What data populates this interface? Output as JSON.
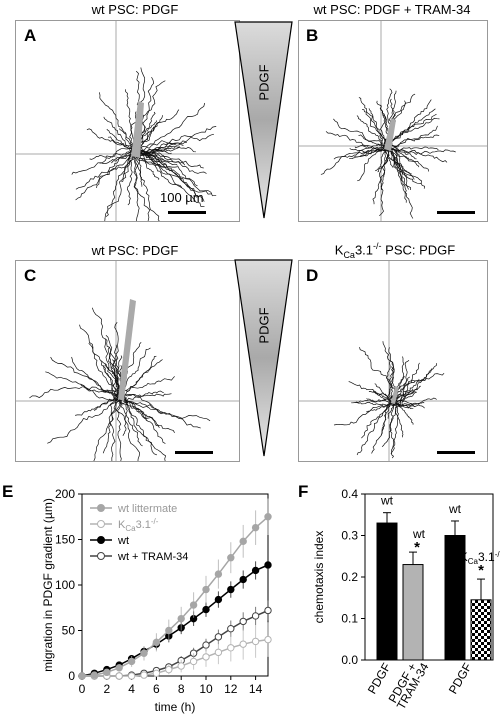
{
  "panels": {
    "A": {
      "letter": "A",
      "title": "wt PSC: PDGF",
      "scale_label": "100 µm"
    },
    "B": {
      "letter": "B",
      "title": "wt PSC: PDGF + TRAM-34"
    },
    "C": {
      "letter": "C",
      "title": "wt PSC: PDGF"
    },
    "D": {
      "letter": "D",
      "title_main": "K",
      "title_sub": "Ca",
      "title_rest": "3.1",
      "title_sup": "-/-",
      "title_tail": " PSC: PDGF"
    }
  },
  "gradients": {
    "top_label": "PDGF",
    "bottom_label": "PDGF"
  },
  "chart_data": [
    {
      "id": "E",
      "letter": "E",
      "type": "line",
      "xlabel": "time (h)",
      "ylabel": "migration in PDGF gradient (µm)",
      "xlim": [
        0,
        15
      ],
      "ylim": [
        0,
        200
      ],
      "xticks": [
        0,
        2,
        4,
        6,
        8,
        10,
        12,
        14
      ],
      "yticks": [
        0,
        50,
        100,
        150,
        200
      ],
      "legend_position": "top-left",
      "series": [
        {
          "name": "wt littermate",
          "color": "#a6a6a6",
          "marker": "filled",
          "x": [
            0,
            1,
            2,
            3,
            4,
            5,
            6,
            7,
            8,
            9,
            10,
            11,
            12,
            13,
            14,
            15
          ],
          "y": [
            0,
            1,
            4,
            9,
            16,
            25,
            37,
            50,
            63,
            78,
            95,
            112,
            130,
            148,
            163,
            175
          ],
          "err": [
            0,
            1,
            2,
            4,
            6,
            8,
            10,
            12,
            13,
            14,
            15,
            16,
            17,
            18,
            19,
            20
          ]
        },
        {
          "name_main": "K",
          "name_sub": "Ca",
          "name_rest": "3.1",
          "name_sup": "-/-",
          "color": "#b3b3b3",
          "marker": "open",
          "x": [
            0,
            1,
            2,
            3,
            4,
            5,
            6,
            7,
            8,
            9,
            10,
            11,
            12,
            13,
            14,
            15
          ],
          "y": [
            0,
            0,
            0,
            0,
            0,
            1,
            3,
            7,
            11,
            16,
            21,
            26,
            31,
            35,
            38,
            40
          ],
          "err": [
            0,
            0,
            0,
            0,
            1,
            2,
            3,
            5,
            7,
            9,
            11,
            13,
            15,
            17,
            18,
            19
          ]
        },
        {
          "name": "wt",
          "color": "#000000",
          "marker": "filled",
          "x": [
            0,
            1,
            2,
            3,
            4,
            5,
            6,
            7,
            8,
            9,
            10,
            11,
            12,
            13,
            14,
            15
          ],
          "y": [
            0,
            3,
            7,
            12,
            19,
            27,
            35,
            44,
            53,
            63,
            73,
            84,
            95,
            106,
            116,
            122
          ],
          "err": [
            0,
            1,
            2,
            3,
            4,
            5,
            6,
            7,
            7,
            8,
            8,
            9,
            9,
            10,
            10,
            10
          ]
        },
        {
          "name": "wt + TRAM-34",
          "color": "#444444",
          "marker": "open",
          "x": [
            0,
            1,
            2,
            3,
            4,
            5,
            6,
            7,
            8,
            9,
            10,
            11,
            12,
            13,
            14,
            15
          ],
          "y": [
            0,
            0,
            0,
            0,
            1,
            3,
            6,
            10,
            17,
            25,
            34,
            43,
            52,
            60,
            66,
            72
          ],
          "err": [
            0,
            0,
            0,
            1,
            1,
            2,
            3,
            4,
            5,
            6,
            7,
            8,
            9,
            10,
            10,
            11
          ]
        }
      ]
    },
    {
      "id": "F",
      "letter": "F",
      "type": "bar",
      "ylabel": "chemotaxis index",
      "ylim": [
        0,
        0.4
      ],
      "yticks": [
        "0.0",
        "0.1",
        "0.2",
        "0.3",
        "0.4"
      ],
      "bars": [
        {
          "value": 0.33,
          "err": 0.025,
          "fill": "#000000",
          "pattern": "solid",
          "label": "wt",
          "sig": ""
        },
        {
          "value": 0.23,
          "err": 0.03,
          "fill": "#b3b3b3",
          "pattern": "solid",
          "label": "wt",
          "sig": "*"
        },
        {
          "value": 0.3,
          "err": 0.035,
          "fill": "#000000",
          "pattern": "solid",
          "label": "wt",
          "sig": ""
        },
        {
          "value": 0.145,
          "err": 0.05,
          "fill": "#ffffff",
          "pattern": "checker",
          "label_main": "K",
          "label_sub": "Ca",
          "label_rest": "3.1",
          "label_sup": "-/-",
          "sig": "*"
        }
      ],
      "categories": [
        {
          "lines": [
            "PDGF"
          ]
        },
        {
          "lines": [
            "PDGF +",
            "TRAM-34"
          ]
        },
        {
          "lines": [
            "PDGF"
          ]
        }
      ]
    }
  ]
}
